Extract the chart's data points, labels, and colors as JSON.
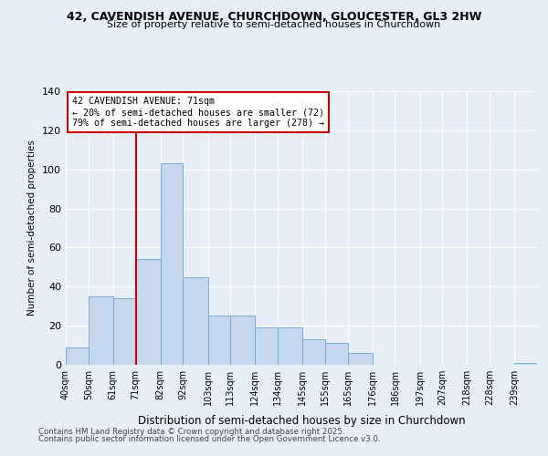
{
  "title1": "42, CAVENDISH AVENUE, CHURCHDOWN, GLOUCESTER, GL3 2HW",
  "title2": "Size of property relative to semi-detached houses in Churchdown",
  "xlabel": "Distribution of semi-detached houses by size in Churchdown",
  "ylabel": "Number of semi-detached properties",
  "property_size": 71,
  "pct_smaller": 20,
  "count_smaller": 72,
  "pct_larger": 79,
  "count_larger": 278,
  "bins": [
    40,
    50,
    61,
    71,
    82,
    92,
    103,
    113,
    124,
    134,
    145,
    155,
    165,
    176,
    186,
    197,
    207,
    218,
    228,
    239,
    249
  ],
  "counts": [
    9,
    35,
    34,
    54,
    103,
    45,
    25,
    25,
    19,
    19,
    13,
    11,
    6,
    0,
    0,
    0,
    0,
    0,
    0,
    1
  ],
  "bar_color": "#c5d8ee",
  "bar_edge_color": "#7aadd4",
  "line_color": "#cc0000",
  "box_edge_color": "#cc0000",
  "bg_color": "#e8eef8",
  "footer1": "Contains HM Land Registry data © Crown copyright and database right 2025.",
  "footer2": "Contains public sector information licensed under the Open Government Licence v3.0.",
  "ylim": [
    0,
    140
  ],
  "yticks": [
    0,
    20,
    40,
    60,
    80,
    100,
    120,
    140
  ]
}
